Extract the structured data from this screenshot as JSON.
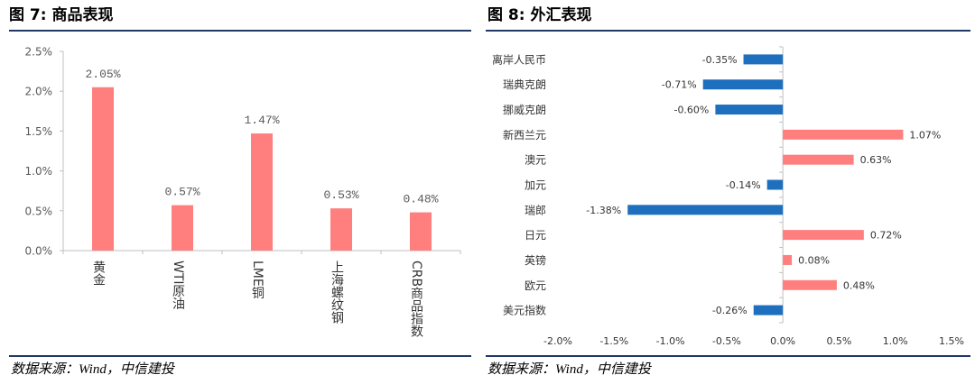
{
  "chart_data": [
    {
      "type": "bar",
      "title": "图 7: 商品表现",
      "categories": [
        "黄金",
        "WTI原油",
        "LME铜",
        "上海螺纹钢",
        "CRB商品指数"
      ],
      "values": [
        2.05,
        0.57,
        1.47,
        0.53,
        0.48
      ],
      "data_labels": [
        "2.05%",
        "0.57%",
        "1.47%",
        "0.53%",
        "0.48%"
      ],
      "ylim": [
        0,
        2.5
      ],
      "yticks": [
        0,
        0.5,
        1.0,
        1.5,
        2.0,
        2.5
      ],
      "ytick_labels": [
        "0.0%",
        "0.5%",
        "1.0%",
        "1.5%",
        "2.0%",
        "2.5%"
      ],
      "grid": false,
      "bar_color": "#FF7F7F",
      "source": "数据来源：Wind，中信建投"
    },
    {
      "type": "bar",
      "orientation": "horizontal",
      "title": "图 8: 外汇表现",
      "categories": [
        "离岸人民币",
        "瑞典克朗",
        "挪威克朗",
        "新西兰元",
        "澳元",
        "加元",
        "瑞郎",
        "日元",
        "英镑",
        "欧元",
        "美元指数"
      ],
      "values": [
        -0.35,
        -0.71,
        -0.6,
        1.07,
        0.63,
        -0.14,
        -1.38,
        0.72,
        0.08,
        0.48,
        -0.26
      ],
      "data_labels": [
        "-0.35%",
        "-0.71%",
        "-0.60%",
        "1.07%",
        "0.63%",
        "-0.14%",
        "-1.38%",
        "0.72%",
        "0.08%",
        "0.48%",
        "-0.26%"
      ],
      "xlim": [
        -2.0,
        1.5
      ],
      "xticks": [
        -2.0,
        -1.5,
        -1.0,
        -0.5,
        0,
        0.5,
        1.0,
        1.5
      ],
      "xtick_labels": [
        "-2.0%",
        "-1.5%",
        "-1.0%",
        "-0.5%",
        "0.0%",
        "0.5%",
        "1.0%",
        "1.5%"
      ],
      "grid": false,
      "positive_color": "#FF7F7F",
      "negative_color": "#1F6FBF",
      "source": "数据来源：Wind，中信建投"
    }
  ],
  "style": {
    "rule_color": "#1F3864"
  }
}
